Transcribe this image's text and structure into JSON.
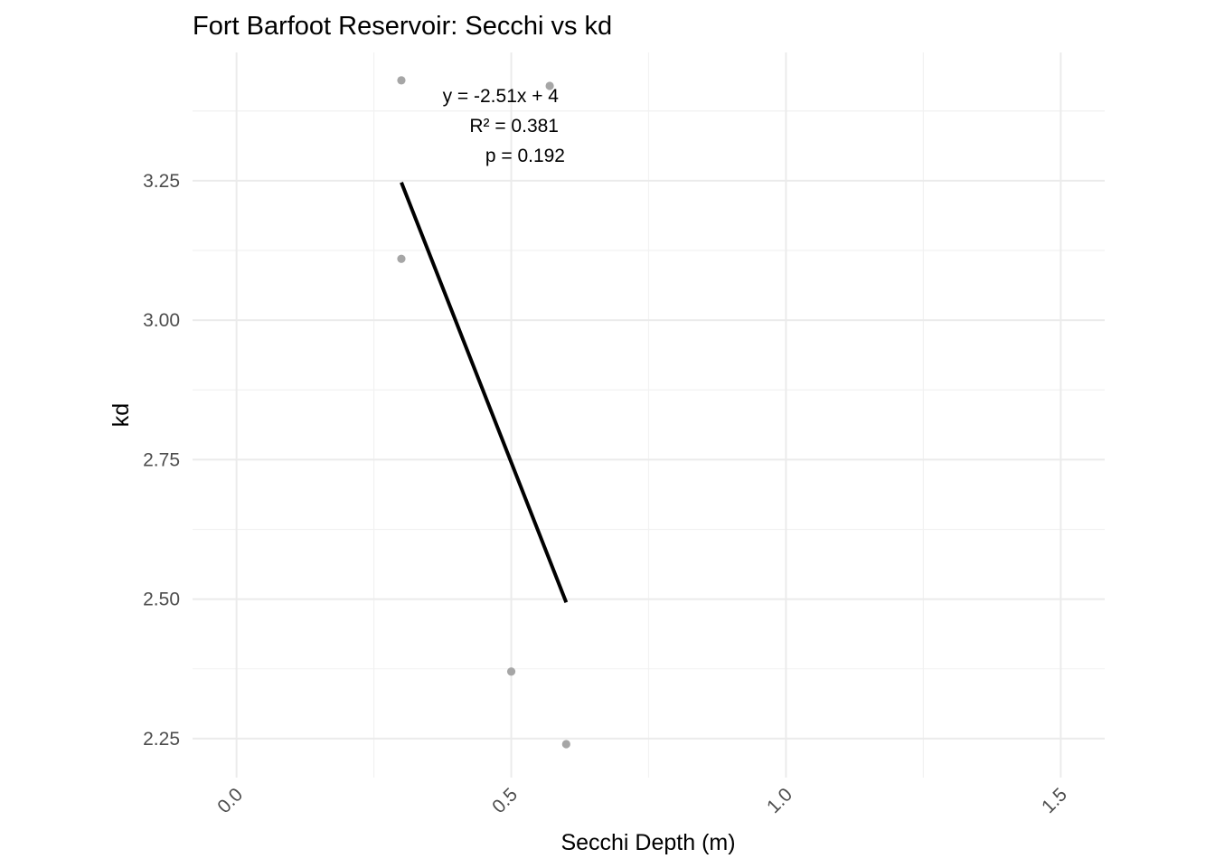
{
  "chart_data": {
    "type": "scatter",
    "title": "Fort Barfoot Reservoir: Secchi vs kd",
    "xlabel": "Secchi Depth (m)",
    "ylabel": "kd",
    "xlim": [
      -0.08,
      1.58
    ],
    "ylim": [
      2.18,
      3.48
    ],
    "x_ticks": [
      0.0,
      0.5,
      1.0,
      1.5
    ],
    "x_tick_labels": [
      "0.0",
      "0.5",
      "1.0",
      "1.5"
    ],
    "y_ticks": [
      2.25,
      2.5,
      2.75,
      3.0,
      3.25
    ],
    "y_tick_labels": [
      "2.25",
      "2.50",
      "2.75",
      "3.00",
      "3.25"
    ],
    "grid": true,
    "points": [
      {
        "x": 0.3,
        "y": 3.43
      },
      {
        "x": 0.3,
        "y": 3.11
      },
      {
        "x": 0.57,
        "y": 3.42
      },
      {
        "x": 0.5,
        "y": 2.37
      },
      {
        "x": 0.6,
        "y": 2.24
      }
    ],
    "point_color": "#a6a6a6",
    "fit_line": {
      "x": [
        0.3,
        0.6
      ],
      "slope": -2.51,
      "intercept": 4,
      "color": "#000000"
    },
    "annotations": [
      "y = -2.51x + 4",
      "R² = 0.381",
      "p = 0.192"
    ]
  }
}
